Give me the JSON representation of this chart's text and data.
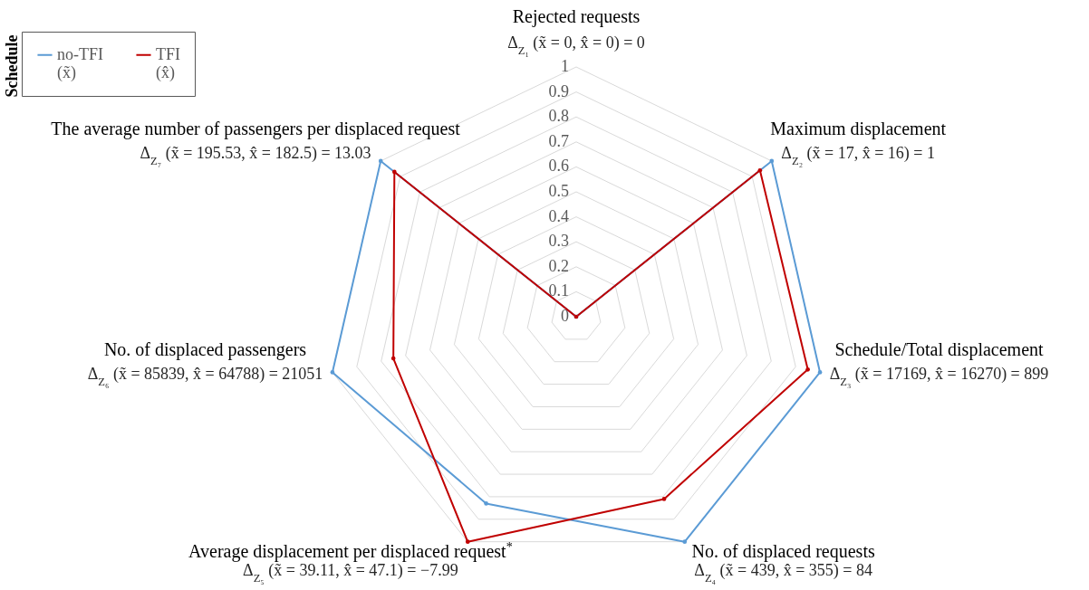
{
  "chart_data": {
    "type": "radar",
    "categories": [
      "Rejected requests",
      "Maximum displacement",
      "Schedule/Total displacement",
      "No. of displaced requests",
      "Average displacement per displaced request$^{*}$",
      "No. of displaced passengers",
      "The average number of passengers per displaced request"
    ],
    "series": [
      {
        "name": "no-TFI (x̃)",
        "color": "#5b9bd5",
        "values": [
          0,
          1,
          1,
          1,
          0.83,
          1,
          1
        ]
      },
      {
        "name": "TFI (x̂)",
        "color": "#c00000",
        "values": [
          0,
          0.94,
          0.95,
          0.81,
          1,
          0.75,
          0.93
        ]
      }
    ],
    "ylim": [
      0,
      1
    ],
    "yticks": [
      0,
      0.1,
      0.2,
      0.3,
      0.4,
      0.5,
      0.6,
      0.7,
      0.8,
      0.9,
      1
    ],
    "annotations": [
      "Δ$_{Z₁}$ (x̃ = 0, x̂ = 0) = 0",
      "Δ$_{Z₂}$ (x̃ = 17, x̂ = 16) = 1",
      "Δ$_{Z₃}$ (x̃ = 17169, x̂ = 16270) = 899",
      "Δ$_{Z₄}$ (x̃ = 439, x̂ = 355) = 84",
      "Δ$_{Z₅}$ (x̃ = 39.11, x̂ = 47.1) = −7.99",
      "Δ$_{Z₆}$ (x̃ = 85839, x̂ = 64788) = 21051",
      "Δ$_{Z₇}$ (x̃ = 195.53, x̂ = 182.5) = 13.03"
    ],
    "legend_title": "Schedule",
    "legend": "top left",
    "grid": true,
    "marker": "circle"
  }
}
